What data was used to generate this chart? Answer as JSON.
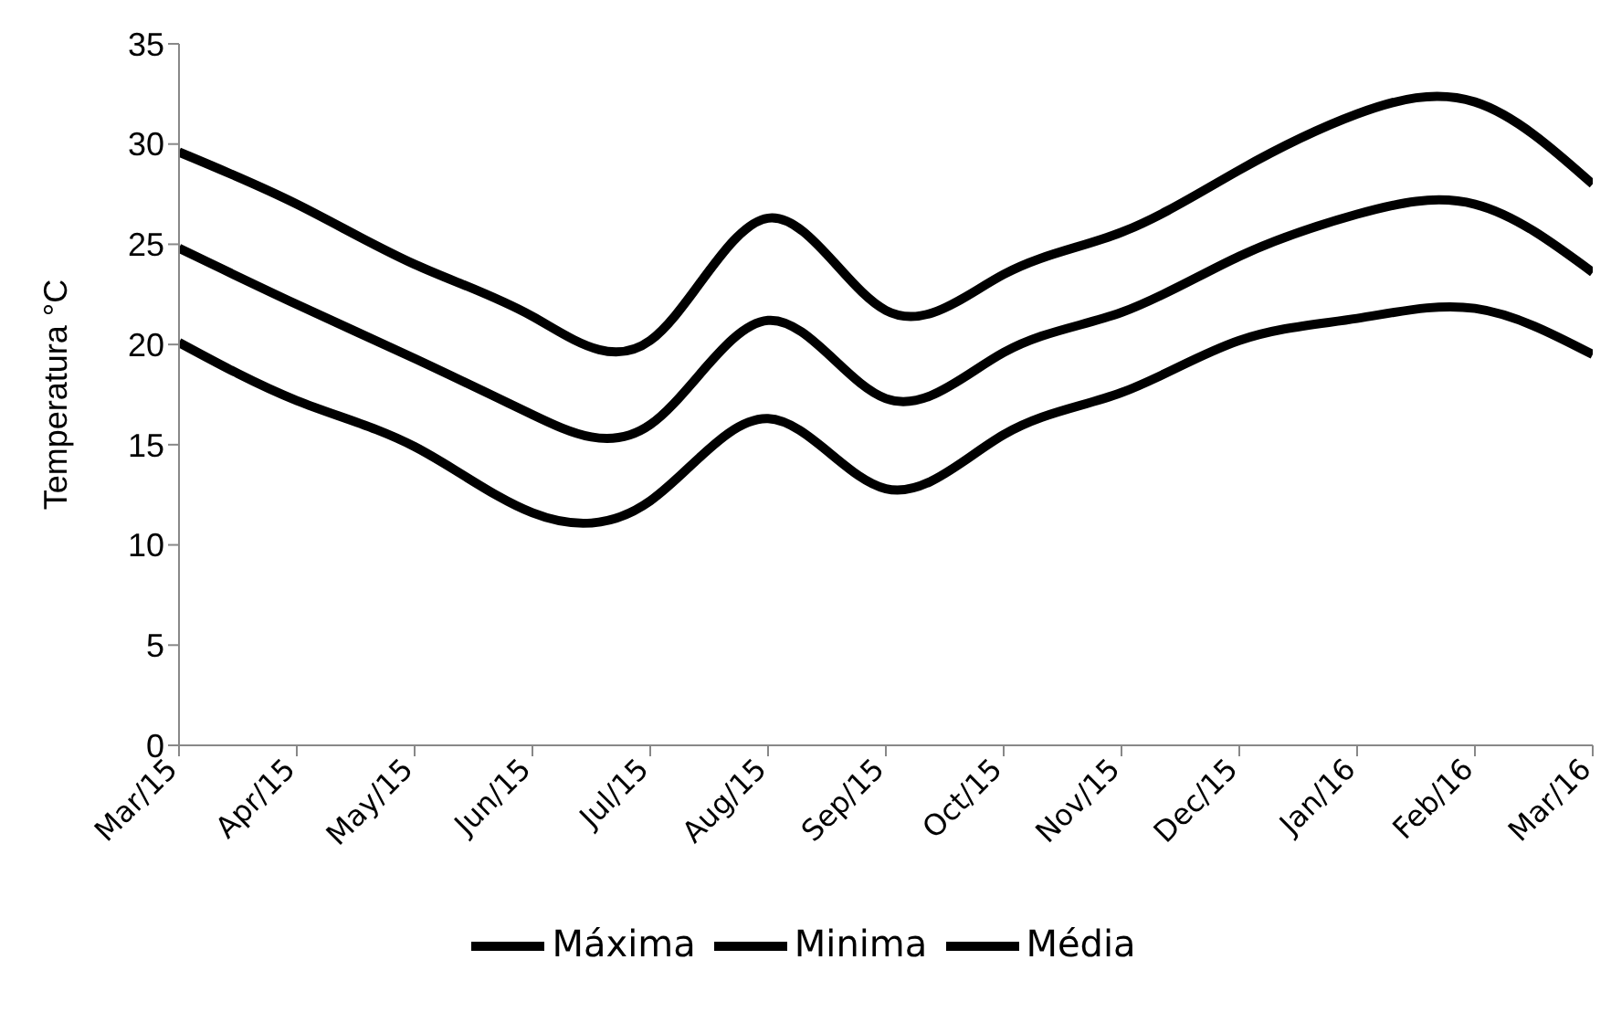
{
  "chart_data": {
    "type": "line",
    "ylabel": "Temperatura °C",
    "categories": [
      "Mar/15",
      "Apr/15",
      "May/15",
      "Jun/15",
      "Jul/15",
      "Aug/15",
      "Sep/15",
      "Oct/15",
      "Nov/15",
      "Dec/15",
      "Jan/16",
      "Feb/16",
      "Mar/16"
    ],
    "series": [
      {
        "name": "Máxima",
        "color": "#000000",
        "values": [
          29.6,
          27.0,
          24.0,
          21.4,
          20.2,
          26.3,
          21.7,
          23.5,
          25.6,
          28.7,
          31.5,
          32.1,
          28.0
        ]
      },
      {
        "name": "Minima",
        "color": "#000000",
        "values": [
          20.1,
          17.2,
          14.9,
          11.6,
          12.2,
          16.3,
          12.8,
          15.5,
          17.6,
          20.2,
          21.3,
          21.8,
          19.5
        ]
      },
      {
        "name": "Média",
        "color": "#000000",
        "values": [
          24.8,
          22.0,
          19.3,
          16.5,
          16.0,
          21.2,
          17.3,
          19.6,
          21.6,
          24.4,
          26.5,
          27.0,
          23.6
        ]
      }
    ],
    "ylim": [
      0,
      35
    ],
    "yticks": [
      0,
      5,
      10,
      15,
      20,
      25,
      30,
      35
    ],
    "grid": false,
    "legend": "bottom",
    "marker": "none",
    "line_style": "solid"
  }
}
